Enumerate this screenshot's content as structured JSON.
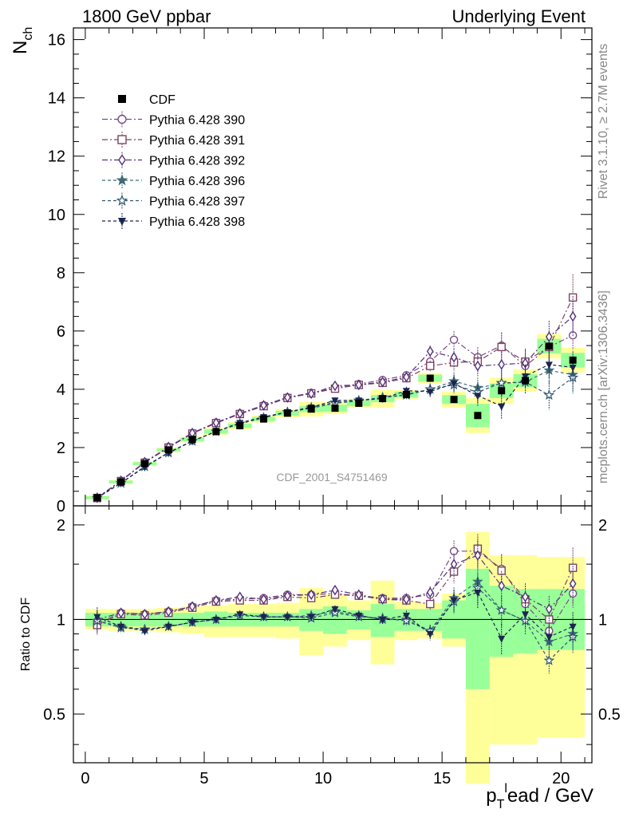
{
  "header": {
    "left": "1800 GeV ppbar",
    "right": "Underlying Event"
  },
  "side_notes": {
    "rivet": "Rivet 3.1.10, ≥ 2.7M events",
    "mcplots": "mcplots.cern.ch [arXiv:1306.3436]"
  },
  "watermark": "CDF_2001_S4751469",
  "chart_data": {
    "type": "scatter",
    "title": "",
    "xlabel": "p_T^lead / GeV",
    "xlabel_parts": {
      "main": "p",
      "sub": "T",
      "sup": "l",
      "rest": "ead / GeV"
    },
    "ylabel": "N_ch",
    "ylabel_parts": {
      "main": "N",
      "sub": "ch"
    },
    "ratio_ylabel": "Ratio to CDF",
    "xlim": [
      -0.5,
      21.3
    ],
    "ylim": [
      0,
      16.4
    ],
    "ratio_ylim": [
      0.35,
      2.3
    ],
    "ratio_log": true,
    "x_ticks": [
      "0",
      "5",
      "10",
      "15",
      "20"
    ],
    "y_ticks": [
      "0",
      "2",
      "4",
      "6",
      "8",
      "10",
      "12",
      "14",
      "16"
    ],
    "ratio_ticks": [
      "0.5",
      "1",
      "2"
    ],
    "legend_position": "top-left",
    "x": [
      0.5,
      1.5,
      2.5,
      3.5,
      4.5,
      5.5,
      6.5,
      7.5,
      8.5,
      9.5,
      10.5,
      11.5,
      12.5,
      13.5,
      14.5,
      15.5,
      16.5,
      17.5,
      18.5,
      19.5,
      20.5
    ],
    "data": {
      "name": "CDF",
      "values": [
        0.28,
        0.82,
        1.45,
        1.92,
        2.28,
        2.55,
        2.75,
        2.98,
        3.18,
        3.32,
        3.35,
        3.52,
        3.68,
        3.82,
        4.38,
        3.65,
        3.1,
        3.95,
        4.3,
        5.48,
        5.0
      ],
      "band_inner": [
        0.05,
        0.05,
        0.05,
        0.05,
        0.06,
        0.07,
        0.07,
        0.07,
        0.08,
        0.1,
        0.12,
        0.1,
        0.12,
        0.1,
        0.12,
        0.15,
        0.4,
        0.25,
        0.22,
        0.25,
        0.25
      ],
      "band_outer": [
        0.07,
        0.07,
        0.08,
        0.09,
        0.1,
        0.12,
        0.12,
        0.12,
        0.14,
        0.25,
        0.2,
        0.15,
        0.3,
        0.15,
        0.18,
        0.28,
        0.6,
        0.45,
        0.38,
        0.42,
        0.42
      ]
    },
    "series": [
      {
        "name": "Pythia 6.428 390",
        "color": "#7a4a86",
        "marker": "circle-open",
        "dash": "7,3,2,3",
        "values": [
          0.27,
          0.86,
          1.5,
          2.02,
          2.5,
          2.86,
          3.17,
          3.45,
          3.72,
          3.88,
          4.05,
          4.18,
          4.32,
          4.48,
          4.95,
          5.7,
          5.1,
          5.5,
          4.8,
          5.45,
          5.85
        ],
        "errors": [
          0.02,
          0.03,
          0.04,
          0.05,
          0.05,
          0.06,
          0.06,
          0.07,
          0.07,
          0.08,
          0.09,
          0.1,
          0.12,
          0.14,
          0.18,
          0.3,
          0.35,
          0.45,
          0.4,
          0.5,
          0.5
        ]
      },
      {
        "name": "Pythia 6.428 391",
        "color": "#7b4560",
        "marker": "square-open",
        "dash": "7,3,2,3",
        "values": [
          0.27,
          0.85,
          1.48,
          2.0,
          2.48,
          2.84,
          3.15,
          3.42,
          3.7,
          3.86,
          4.02,
          4.15,
          4.22,
          4.38,
          4.8,
          4.92,
          4.95,
          5.45,
          4.95,
          5.45,
          7.15
        ],
        "errors": [
          0.02,
          0.03,
          0.04,
          0.05,
          0.05,
          0.06,
          0.06,
          0.07,
          0.07,
          0.08,
          0.09,
          0.1,
          0.12,
          0.14,
          0.18,
          0.3,
          0.35,
          0.5,
          0.45,
          0.55,
          0.8
        ]
      },
      {
        "name": "Pythia 6.428 392",
        "color": "#52317e",
        "marker": "diamond-open",
        "dash": "7,3,2,3",
        "values": [
          0.28,
          0.86,
          1.5,
          2.02,
          2.5,
          2.85,
          3.17,
          3.45,
          3.72,
          3.85,
          4.12,
          4.15,
          4.25,
          4.42,
          5.3,
          5.1,
          4.8,
          4.85,
          4.9,
          5.8,
          6.5
        ],
        "errors": [
          0.02,
          0.03,
          0.04,
          0.05,
          0.05,
          0.06,
          0.06,
          0.07,
          0.07,
          0.08,
          0.09,
          0.1,
          0.12,
          0.14,
          0.2,
          0.3,
          0.35,
          0.45,
          0.45,
          0.55,
          0.7
        ]
      },
      {
        "name": "Pythia 6.428 396",
        "color": "#3f6a78",
        "marker": "star-filled",
        "dash": "4,3",
        "values": [
          0.27,
          0.78,
          1.35,
          1.82,
          2.22,
          2.55,
          2.82,
          3.02,
          3.22,
          3.38,
          3.55,
          3.62,
          3.72,
          3.82,
          4.0,
          4.28,
          4.05,
          4.2,
          4.25,
          4.65,
          4.5
        ],
        "errors": [
          0.02,
          0.03,
          0.04,
          0.05,
          0.05,
          0.06,
          0.06,
          0.07,
          0.07,
          0.08,
          0.09,
          0.1,
          0.12,
          0.14,
          0.2,
          0.3,
          0.35,
          0.45,
          0.4,
          0.5,
          0.55
        ]
      },
      {
        "name": "Pythia 6.428 397",
        "color": "#2f5872",
        "marker": "star-open",
        "dash": "4,3",
        "values": [
          0.27,
          0.78,
          1.35,
          1.83,
          2.23,
          2.55,
          2.82,
          3.02,
          3.22,
          3.35,
          3.52,
          3.6,
          3.72,
          3.8,
          4.0,
          4.15,
          3.9,
          4.22,
          4.25,
          3.8,
          4.4
        ],
        "errors": [
          0.02,
          0.03,
          0.04,
          0.05,
          0.05,
          0.06,
          0.06,
          0.07,
          0.07,
          0.08,
          0.09,
          0.1,
          0.12,
          0.14,
          0.2,
          0.3,
          0.35,
          0.45,
          0.4,
          0.5,
          0.55
        ]
      },
      {
        "name": "Pythia 6.428 398",
        "color": "#1c2550",
        "marker": "triangle-down-filled",
        "dash": "4,3",
        "values": [
          0.29,
          0.78,
          1.33,
          1.82,
          2.22,
          2.55,
          2.85,
          3.05,
          3.22,
          3.38,
          3.62,
          3.62,
          3.68,
          3.95,
          3.92,
          4.2,
          3.78,
          3.42,
          4.45,
          4.85,
          4.75
        ],
        "errors": [
          0.02,
          0.03,
          0.04,
          0.05,
          0.05,
          0.06,
          0.06,
          0.07,
          0.07,
          0.08,
          0.09,
          0.1,
          0.12,
          0.14,
          0.2,
          0.3,
          0.35,
          0.45,
          0.4,
          0.5,
          0.55
        ]
      }
    ],
    "ratio_series": {
      "Pythia 6.428 390": [
        0.97,
        1.05,
        1.04,
        1.06,
        1.1,
        1.15,
        1.16,
        1.17,
        1.2,
        1.2,
        1.21,
        1.19,
        1.17,
        1.17,
        1.2,
        1.65,
        1.65,
        1.45,
        1.12,
        0.92,
        1.21
      ],
      "Pythia 6.428 391": [
        0.96,
        1.04,
        1.03,
        1.05,
        1.09,
        1.14,
        1.15,
        1.15,
        1.18,
        1.17,
        1.2,
        1.19,
        1.16,
        1.15,
        1.12,
        1.42,
        1.68,
        1.43,
        1.16,
        1.0,
        1.46
      ],
      "Pythia 6.428 392": [
        1.0,
        1.05,
        1.04,
        1.06,
        1.1,
        1.15,
        1.18,
        1.16,
        1.19,
        1.2,
        1.24,
        1.2,
        1.16,
        1.16,
        1.22,
        1.5,
        1.6,
        1.28,
        1.18,
        1.08,
        1.3
      ],
      "Pythia 6.428 396": [
        0.99,
        0.94,
        0.93,
        0.95,
        0.98,
        1.0,
        1.03,
        1.02,
        1.02,
        1.03,
        1.06,
        1.03,
        1.0,
        1.0,
        0.92,
        1.17,
        1.32,
        1.07,
        0.99,
        0.85,
        0.9
      ],
      "Pythia 6.428 397": [
        0.99,
        0.95,
        0.93,
        0.95,
        0.98,
        1.0,
        1.03,
        1.02,
        1.02,
        1.01,
        1.05,
        1.02,
        1.01,
        0.99,
        0.92,
        1.14,
        1.26,
        1.07,
        0.99,
        0.74,
        0.88
      ],
      "Pythia 6.428 398": [
        1.02,
        0.95,
        0.92,
        0.95,
        0.98,
        1.0,
        1.04,
        1.02,
        1.02,
        1.02,
        1.08,
        1.03,
        1.0,
        1.03,
        0.9,
        1.15,
        1.22,
        0.87,
        1.04,
        0.88,
        0.95
      ]
    },
    "ratio_bands": {
      "outer": [
        [
          0.93,
          1.08
        ],
        [
          0.92,
          1.08
        ],
        [
          0.92,
          1.08
        ],
        [
          0.91,
          1.09
        ],
        [
          0.9,
          1.1
        ],
        [
          0.88,
          1.11
        ],
        [
          0.88,
          1.12
        ],
        [
          0.88,
          1.12
        ],
        [
          0.87,
          1.13
        ],
        [
          0.77,
          1.26
        ],
        [
          0.82,
          1.2
        ],
        [
          0.86,
          1.15
        ],
        [
          0.72,
          1.33
        ],
        [
          0.86,
          1.14
        ],
        [
          0.87,
          1.13
        ],
        [
          0.82,
          1.21
        ],
        [
          0.3,
          1.9
        ],
        [
          0.4,
          1.6
        ],
        [
          0.4,
          1.6
        ],
        [
          0.42,
          1.58
        ],
        [
          0.42,
          1.58
        ]
      ],
      "inner": [
        [
          0.95,
          1.05
        ],
        [
          0.95,
          1.05
        ],
        [
          0.95,
          1.05
        ],
        [
          0.95,
          1.05
        ],
        [
          0.95,
          1.05
        ],
        [
          0.95,
          1.06
        ],
        [
          0.95,
          1.05
        ],
        [
          0.95,
          1.05
        ],
        [
          0.95,
          1.05
        ],
        [
          0.92,
          1.08
        ],
        [
          0.9,
          1.1
        ],
        [
          0.93,
          1.07
        ],
        [
          0.88,
          1.12
        ],
        [
          0.92,
          1.08
        ],
        [
          0.92,
          1.08
        ],
        [
          0.87,
          1.15
        ],
        [
          0.6,
          1.45
        ],
        [
          0.76,
          1.28
        ],
        [
          0.78,
          1.25
        ],
        [
          0.8,
          1.25
        ],
        [
          0.8,
          1.25
        ]
      ]
    }
  }
}
